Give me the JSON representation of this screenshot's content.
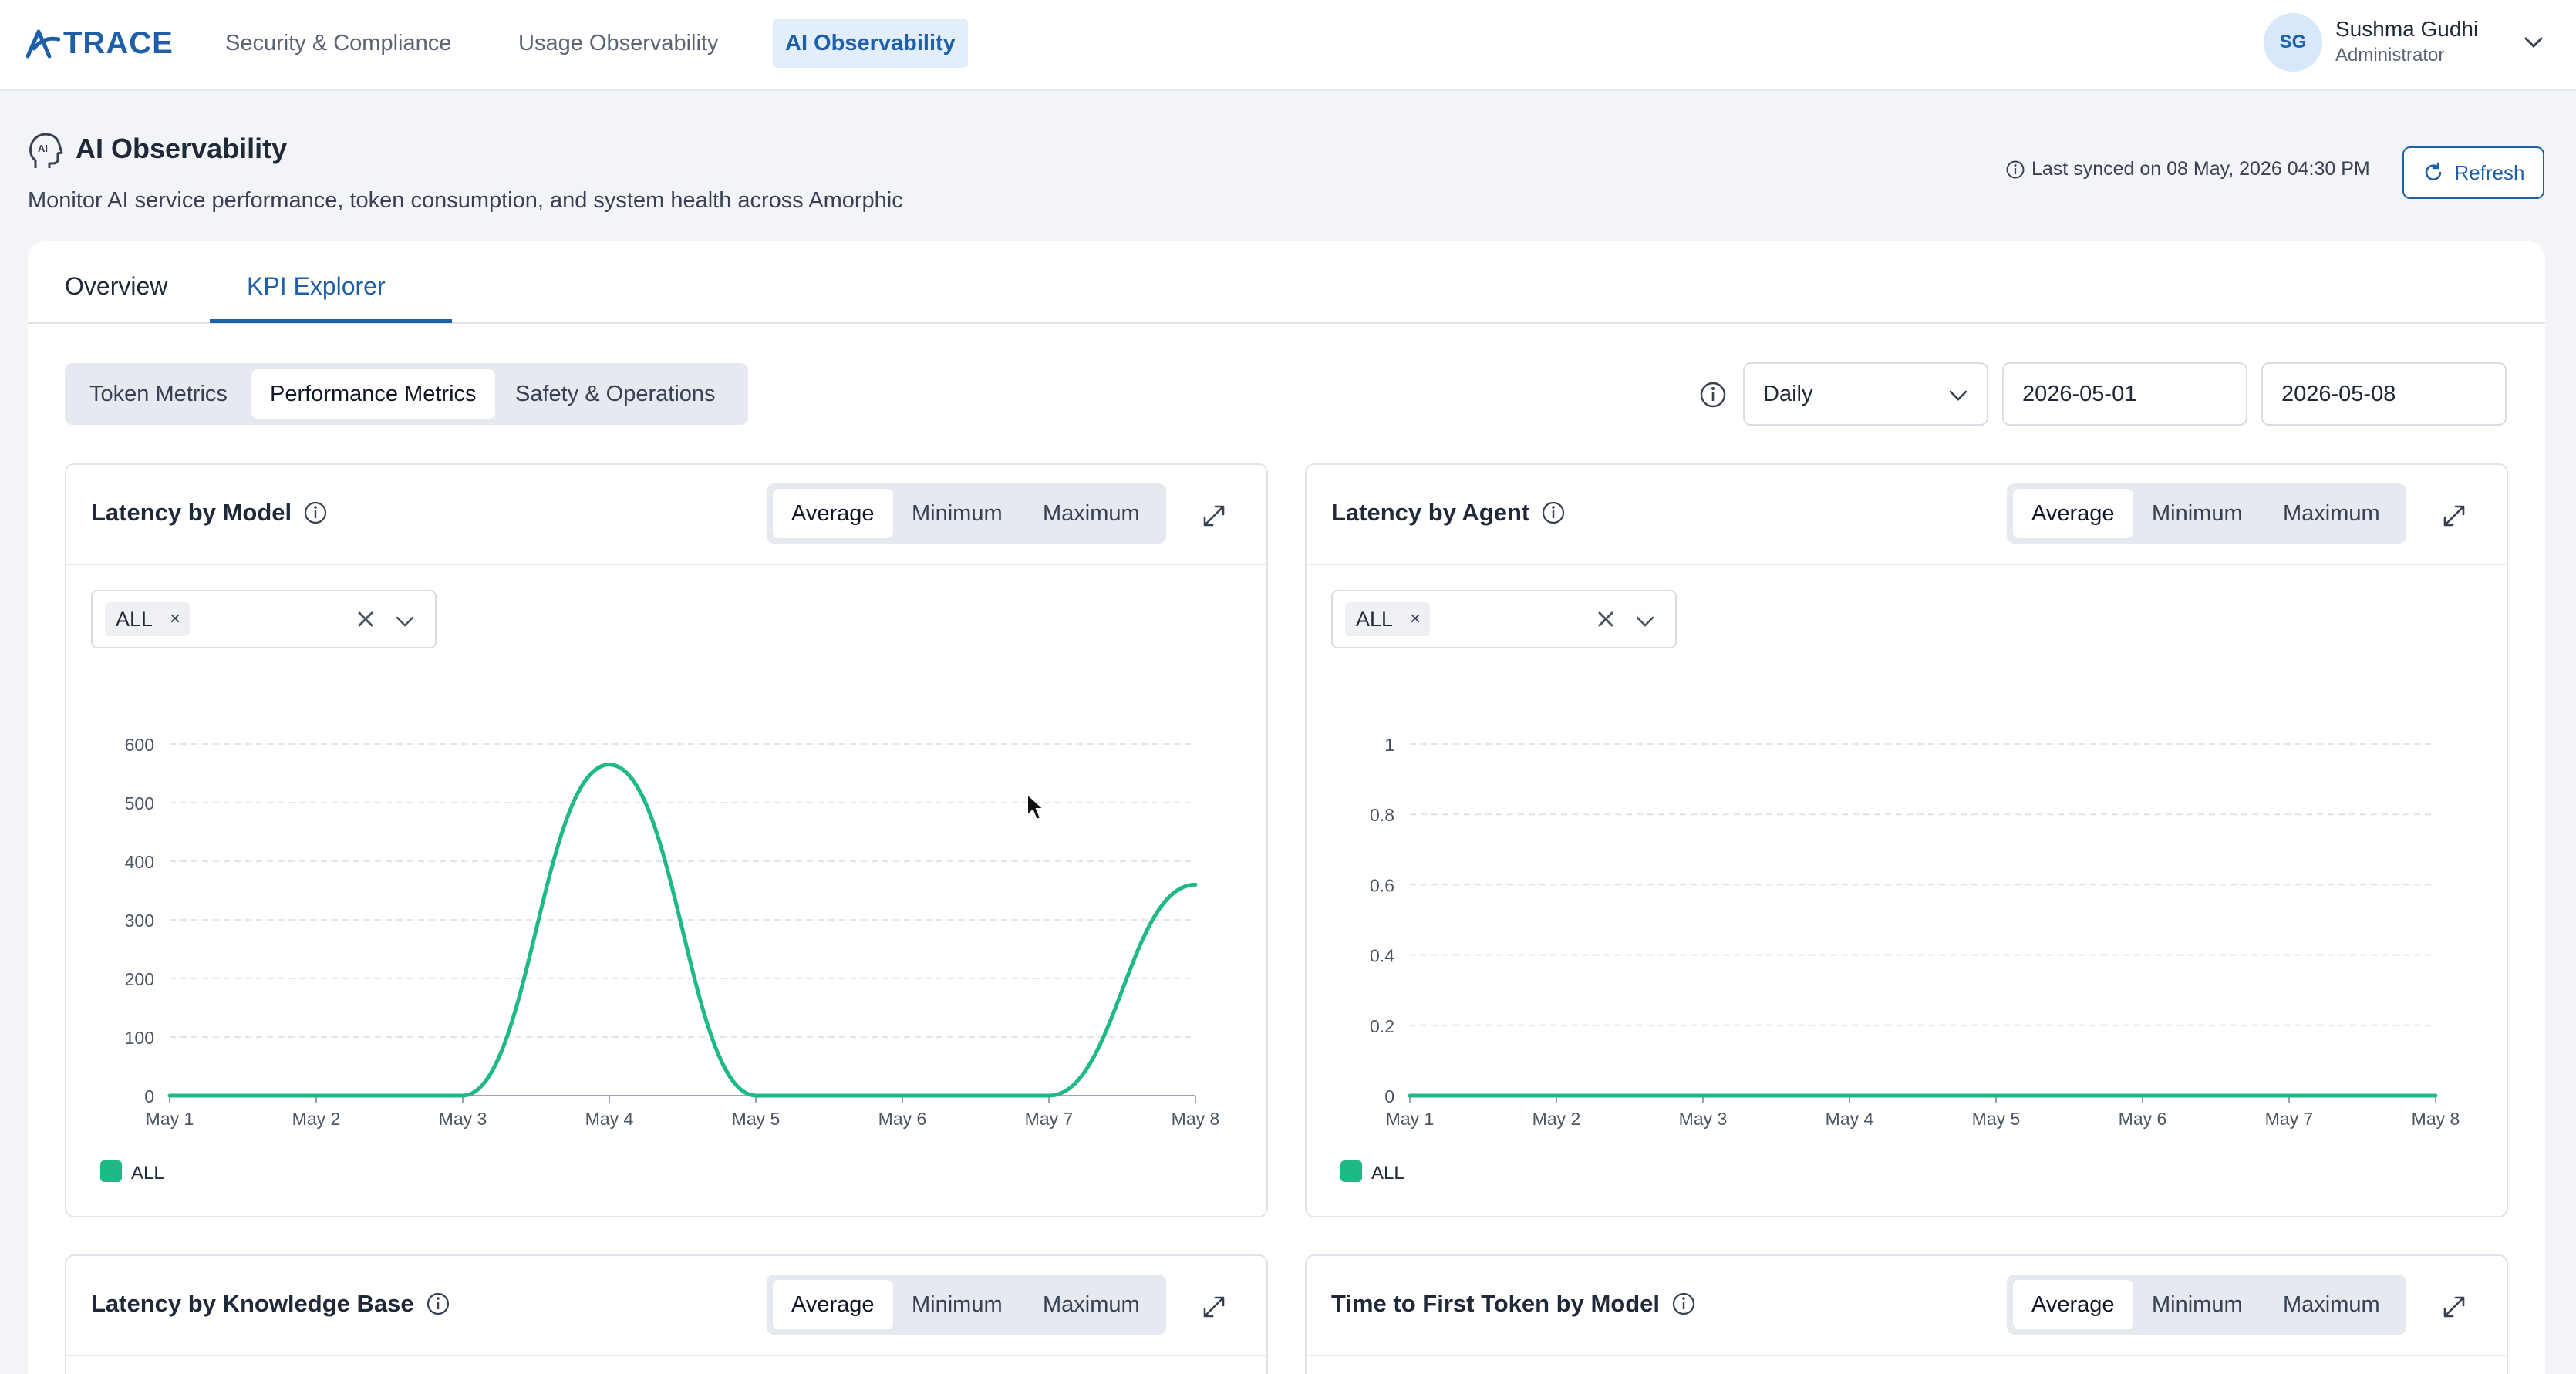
{
  "brand": {
    "name": "TRACE"
  },
  "nav": {
    "links": [
      "Security & Compliance",
      "Usage Observability",
      "AI Observability"
    ],
    "active_index": 2
  },
  "user": {
    "initials": "SG",
    "name": "Sushma Gudhi",
    "role": "Administrator"
  },
  "page": {
    "title": "AI Observability",
    "subtitle": "Monitor AI service performance, token consumption, and system health across Amorphic",
    "sync_text": "Last synced on 08 May, 2026 04:30 PM",
    "refresh_label": "Refresh"
  },
  "tabs": [
    "Overview",
    "KPI Explorer"
  ],
  "active_tab": 1,
  "metric_groups": [
    "Token Metrics",
    "Performance Metrics",
    "Safety & Operations"
  ],
  "active_metric_group": 1,
  "filters": {
    "granularity": "Daily",
    "start_date": "2026-05-01",
    "end_date": "2026-05-08"
  },
  "aggregations": [
    "Average",
    "Minimum",
    "Maximum"
  ],
  "cards": [
    {
      "title": "Latency by Model",
      "selected_agg": "Average",
      "chip": "ALL",
      "has_chart": true
    },
    {
      "title": "Latency by Agent",
      "selected_agg": "Average",
      "chip": "ALL",
      "has_chart": true
    },
    {
      "title": "Latency by Knowledge Base",
      "selected_agg": "Average",
      "has_chart": false
    },
    {
      "title": "Time to First Token by Model",
      "selected_agg": "Average",
      "has_chart": false
    }
  ],
  "chart_data": [
    {
      "type": "line",
      "title": "Latency by Model",
      "x": [
        "May 1",
        "May 2",
        "May 3",
        "May 4",
        "May 5",
        "May 6",
        "May 7",
        "May 8"
      ],
      "ylim": [
        0,
        600
      ],
      "yticks": [
        0,
        100,
        200,
        300,
        400,
        500,
        600
      ],
      "series": [
        {
          "name": "ALL",
          "color": "#1fb987",
          "values": [
            0,
            0,
            0,
            565,
            0,
            0,
            0,
            360
          ]
        }
      ],
      "legend": "bottom-left",
      "grid": true
    },
    {
      "type": "line",
      "title": "Latency by Agent",
      "x": [
        "May 1",
        "May 2",
        "May 3",
        "May 4",
        "May 5",
        "May 6",
        "May 7",
        "May 8"
      ],
      "ylim": [
        0,
        1
      ],
      "yticks": [
        "0",
        "0.2",
        "0.4",
        "0.6",
        "0.8",
        "1"
      ],
      "series": [
        {
          "name": "ALL",
          "color": "#1fb987",
          "values": [
            0,
            0,
            0,
            0,
            0,
            0,
            0,
            0
          ]
        }
      ],
      "legend": "bottom-left",
      "grid": true
    }
  ]
}
